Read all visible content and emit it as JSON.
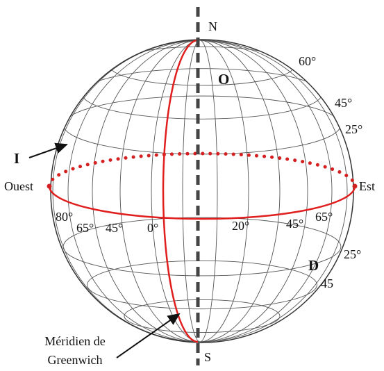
{
  "poles": {
    "north": "N",
    "south": "S"
  },
  "points": {
    "o": "O",
    "i": "I",
    "d": "D"
  },
  "directions": {
    "west": "Ouest",
    "east": "Est"
  },
  "latitude_labels": [
    "60°",
    "45°",
    "25°",
    "25°",
    "45"
  ],
  "longitude_labels": [
    "80°",
    "65°",
    "45°",
    "0°",
    "20°",
    "45°",
    "65°"
  ],
  "meridian_caption": [
    "Méridien de",
    "Greenwich"
  ]
}
